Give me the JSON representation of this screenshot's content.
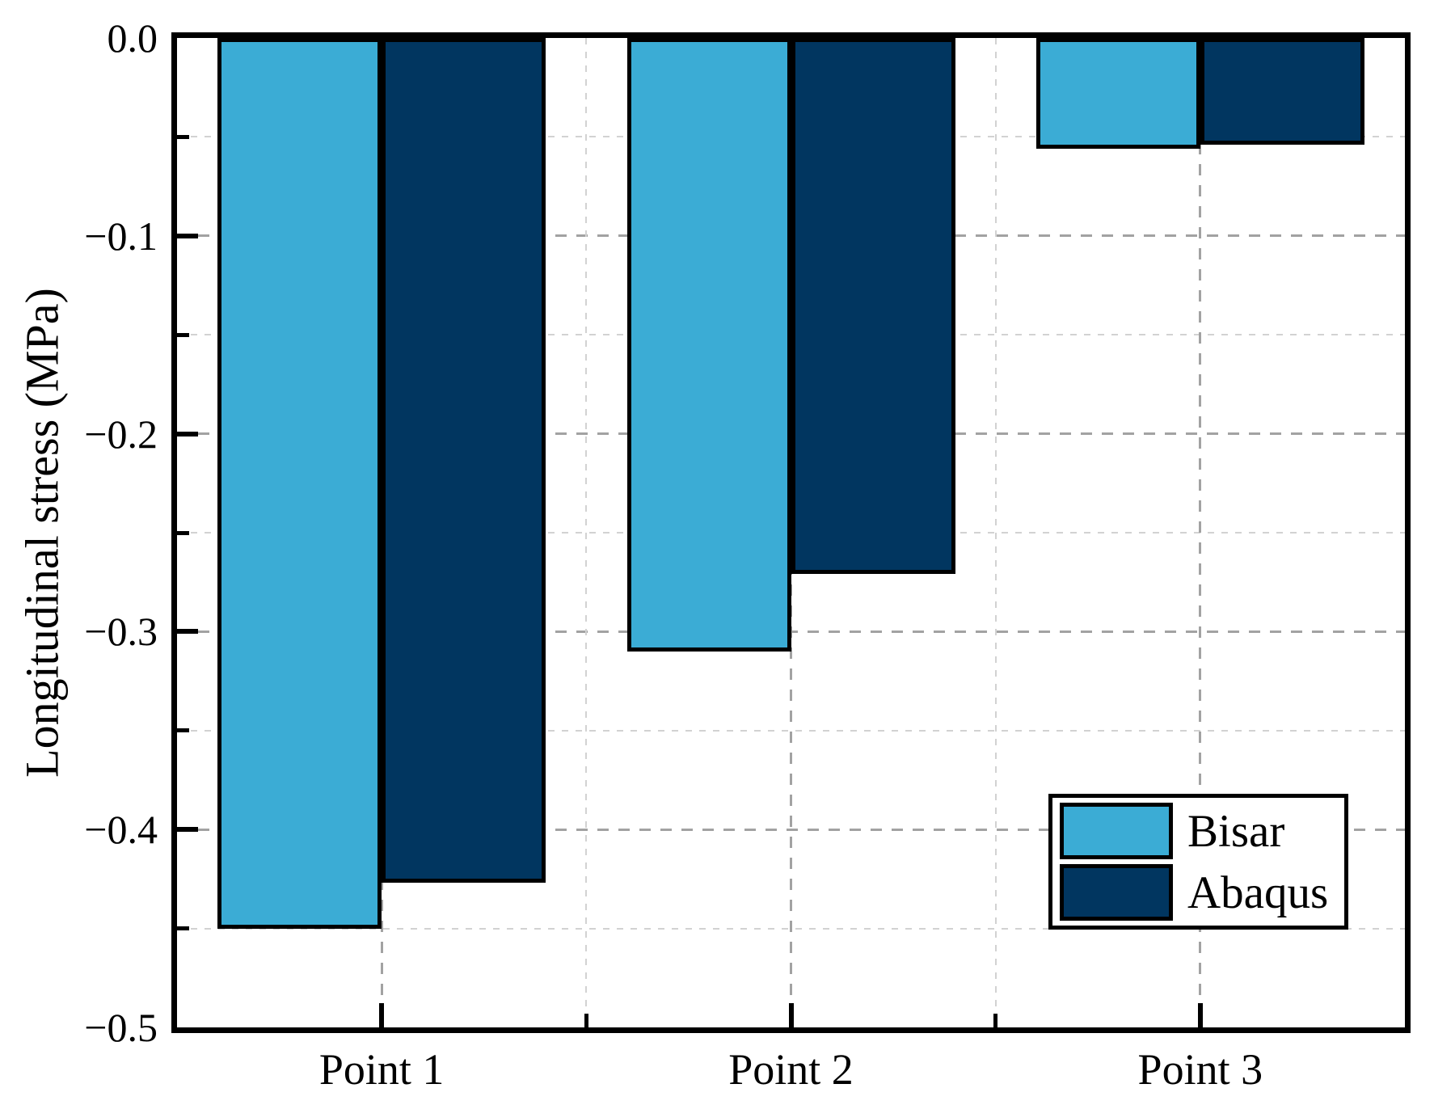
{
  "chart_data": {
    "type": "bar",
    "categories": [
      "Point 1",
      "Point 2",
      "Point 3"
    ],
    "series": [
      {
        "name": "Bisar",
        "color": "#3bacd5",
        "values": [
          -0.45,
          -0.31,
          -0.056
        ]
      },
      {
        "name": "Abaqus",
        "color": "#013660",
        "values": [
          -0.427,
          -0.271,
          -0.054
        ]
      }
    ],
    "title": "",
    "xlabel": "",
    "ylabel": "Longitudinal stress (MPa)",
    "ylim": [
      -0.5,
      0.0
    ],
    "y_major_tick_labels": [
      "0.0",
      "−0.1",
      "−0.2",
      "−0.3",
      "−0.4",
      "−0.5"
    ],
    "y_major_step": 0.1,
    "y_minor_step": 0.05,
    "grid": "dashed major and minor gridlines on both axes",
    "bar_edge_color": "#000000",
    "legend": {
      "position": "lower right",
      "entries": [
        "Bisar",
        "Abaqus"
      ]
    }
  }
}
